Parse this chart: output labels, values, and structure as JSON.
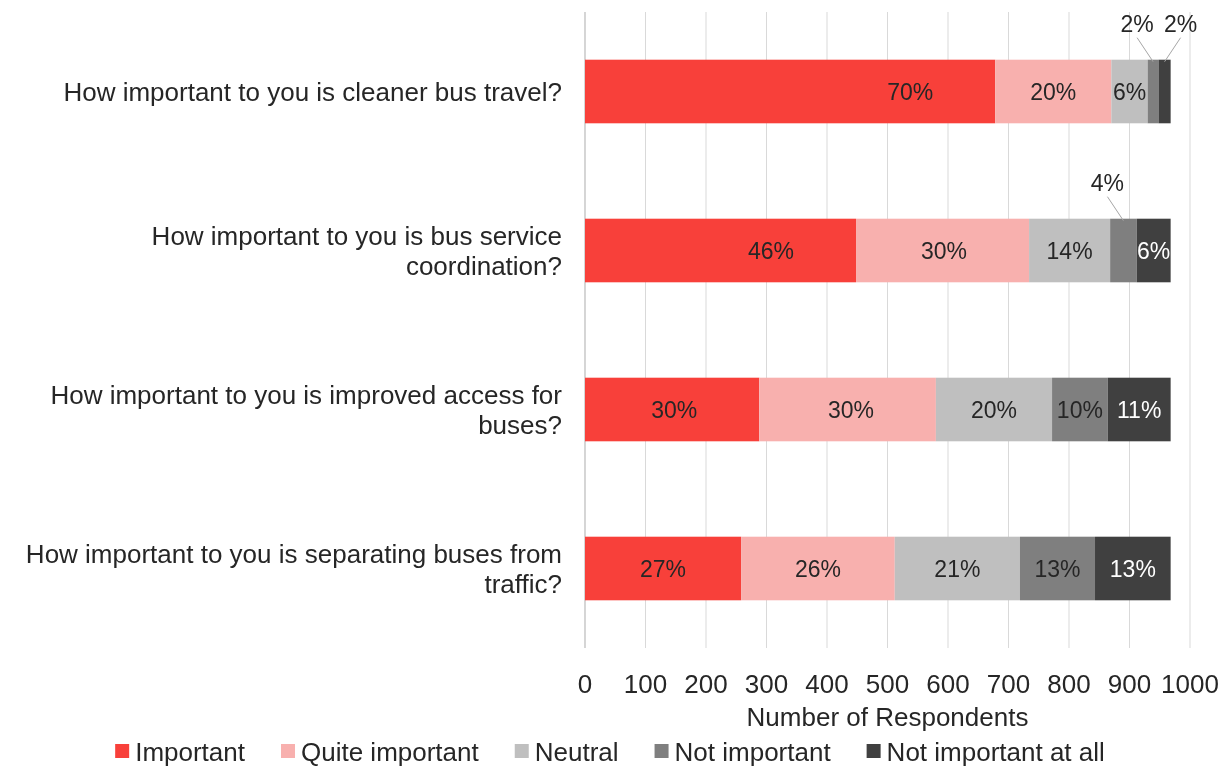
{
  "chart_data": {
    "type": "bar",
    "orientation": "horizontal",
    "stacked": true,
    "xlabel": "Number of Respondents",
    "categories": [
      "How important to you is cleaner bus travel?",
      "How important to you is bus service coordination?",
      "How important to you is improved access for buses?",
      "How important to you is separating buses from traffic?"
    ],
    "series": [
      {
        "name": "Important",
        "color": "#f8403a",
        "values": [
          678,
          448,
          288,
          258
        ]
      },
      {
        "name": "Quite important",
        "color": "#f8b0ae",
        "values": [
          192,
          286,
          292,
          254
        ]
      },
      {
        "name": "Neutral",
        "color": "#bfbfbf",
        "values": [
          60,
          134,
          192,
          207
        ]
      },
      {
        "name": "Not important",
        "color": "#7f7f7f",
        "values": [
          18,
          44,
          92,
          124
        ]
      },
      {
        "name": "Not important at all",
        "color": "#404040",
        "values": [
          20,
          56,
          104,
          125
        ]
      }
    ],
    "annotations": [
      {
        "text": "70%",
        "x": 678,
        "y": "How important to you is cleaner bus travel?"
      },
      {
        "text": "20%",
        "x": 870,
        "y": "How important to you is cleaner bus travel?"
      },
      {
        "text": "6%",
        "x": 930,
        "y": "How important to you is cleaner bus travel?"
      },
      {
        "text": "2%",
        "x": 948,
        "y": "How important to you is cleaner bus travel?"
      },
      {
        "text": "2%",
        "x": 968,
        "y": "How important to you is cleaner bus travel?"
      },
      {
        "text": "46%",
        "x": 448,
        "y": "How important to you is bus service coordination?"
      },
      {
        "text": "30%",
        "x": 734,
        "y": "How important to you is bus service coordination?"
      },
      {
        "text": "14%",
        "x": 868,
        "y": "How important to you is bus service coordination?"
      },
      {
        "text": "4%",
        "x": 912,
        "y": "How important to you is bus service coordination?"
      },
      {
        "text": "6%",
        "x": 968,
        "y": "How important to you is bus service coordination?"
      },
      {
        "text": "30%",
        "x": 288,
        "y": "How important to you is improved access for buses?"
      },
      {
        "text": "30%",
        "x": 580,
        "y": "How important to you is improved access for buses?"
      },
      {
        "text": "20%",
        "x": 772,
        "y": "How important to you is improved access for buses?"
      },
      {
        "text": "10%",
        "x": 864,
        "y": "How important to you is improved access for buses?"
      },
      {
        "text": "11%",
        "x": 968,
        "y": "How important to you is improved access for buses?"
      },
      {
        "text": "27%",
        "x": 258,
        "y": "How important to you is separating buses from traffic?"
      },
      {
        "text": "26%",
        "x": 512,
        "y": "How important to you is separating buses from traffic?"
      },
      {
        "text": "21%",
        "x": 719,
        "y": "How important to you is separating buses from traffic?"
      },
      {
        "text": "13%",
        "x": 843,
        "y": "How important to you is separating buses from traffic?"
      },
      {
        "text": "13%",
        "x": 968,
        "y": "How important to you is separating buses from traffic?"
      }
    ],
    "xlim": [
      0,
      1000
    ],
    "xticks": [
      0,
      100,
      200,
      300,
      400,
      500,
      600,
      700,
      800,
      900,
      1000
    ],
    "grid": "x",
    "legend": "bottom"
  }
}
